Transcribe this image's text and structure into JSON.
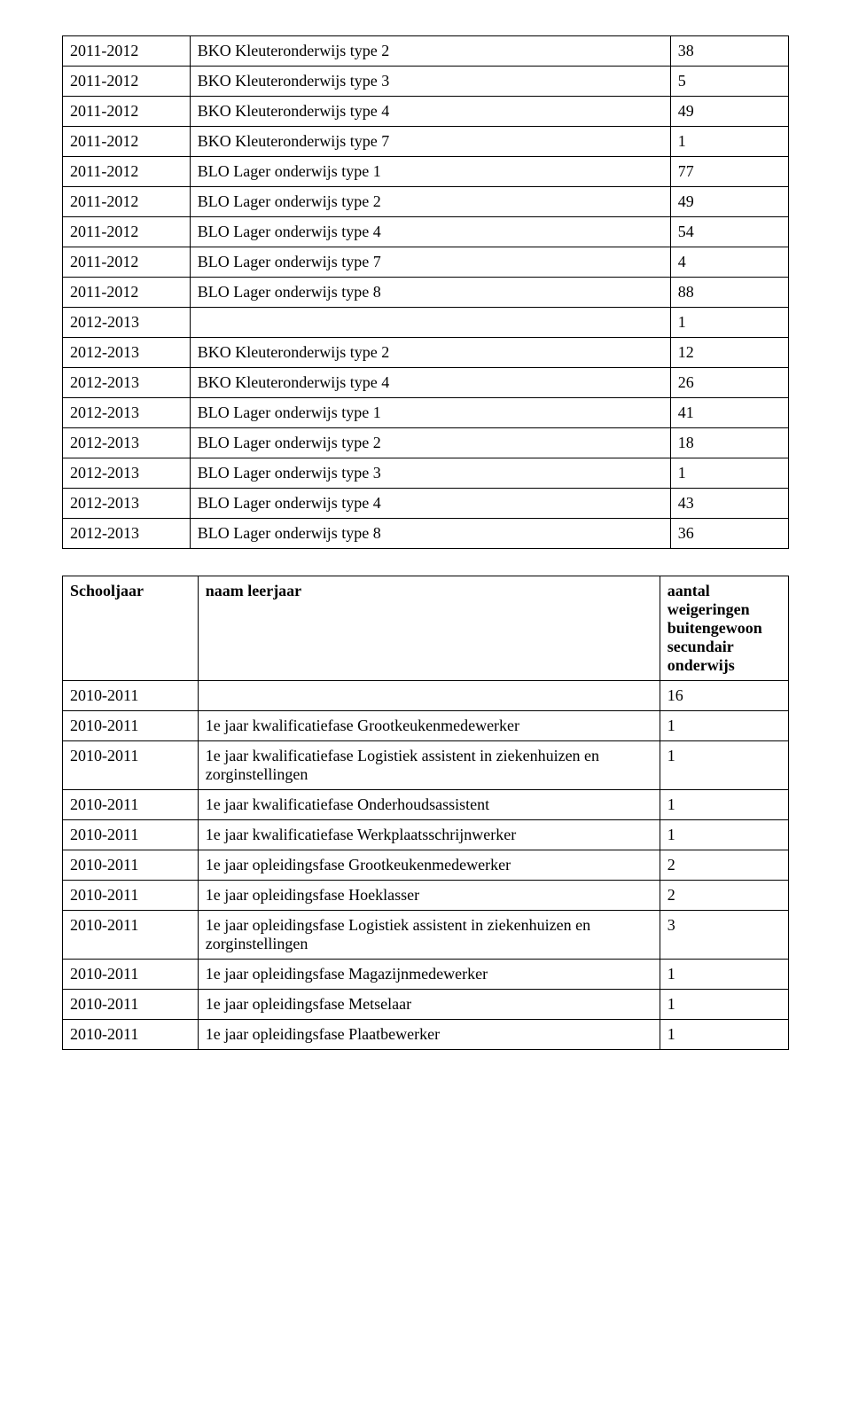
{
  "table1": {
    "rows": [
      [
        "2011-2012",
        "BKO Kleuteronderwijs type 2",
        "38"
      ],
      [
        "2011-2012",
        "BKO Kleuteronderwijs type 3",
        "5"
      ],
      [
        "2011-2012",
        "BKO Kleuteronderwijs type 4",
        "49"
      ],
      [
        "2011-2012",
        "BKO Kleuteronderwijs type 7",
        "1"
      ],
      [
        "2011-2012",
        "BLO Lager onderwijs type 1",
        "77"
      ],
      [
        "2011-2012",
        "BLO Lager onderwijs type 2",
        "49"
      ],
      [
        "2011-2012",
        "BLO Lager onderwijs type 4",
        "54"
      ],
      [
        "2011-2012",
        "BLO Lager onderwijs type 7",
        "4"
      ],
      [
        "2011-2012",
        "BLO Lager onderwijs type 8",
        "88"
      ],
      [
        "2012-2013",
        "",
        "1"
      ],
      [
        "2012-2013",
        "BKO Kleuteronderwijs type 2",
        "12"
      ],
      [
        "2012-2013",
        "BKO Kleuteronderwijs type 4",
        "26"
      ],
      [
        "2012-2013",
        "BLO Lager onderwijs type 1",
        "41"
      ],
      [
        "2012-2013",
        "BLO Lager onderwijs type 2",
        "18"
      ],
      [
        "2012-2013",
        "BLO Lager onderwijs type 3",
        "1"
      ],
      [
        "2012-2013",
        "BLO Lager onderwijs type 4",
        "43"
      ],
      [
        "2012-2013",
        "BLO Lager onderwijs type 8",
        "36"
      ]
    ]
  },
  "table2": {
    "header": [
      "Schooljaar",
      "naam leerjaar",
      "aantal weigeringen buitengewoon secundair onderwijs"
    ],
    "rows": [
      [
        "2010-2011",
        "",
        "16"
      ],
      [
        "2010-2011",
        "1e jaar kwalificatiefase Grootkeukenmedewerker",
        "1"
      ],
      [
        "2010-2011",
        "1e jaar kwalificatiefase Logistiek assistent in ziekenhuizen en zorginstellingen",
        "1"
      ],
      [
        "2010-2011",
        "1e jaar kwalificatiefase Onderhoudsassistent",
        "1"
      ],
      [
        "2010-2011",
        "1e jaar kwalificatiefase Werkplaatsschrijnwerker",
        "1"
      ],
      [
        "2010-2011",
        "1e jaar opleidingsfase Grootkeukenmedewerker",
        "2"
      ],
      [
        "2010-2011",
        "1e jaar opleidingsfase Hoeklasser",
        "2"
      ],
      [
        "2010-2011",
        "1e jaar opleidingsfase Logistiek assistent in ziekenhuizen en zorginstellingen",
        "3"
      ],
      [
        "2010-2011",
        "1e jaar opleidingsfase Magazijnmedewerker",
        "1"
      ],
      [
        "2010-2011",
        "1e jaar opleidingsfase Metselaar",
        "1"
      ],
      [
        "2010-2011",
        "1e jaar opleidingsfase Plaatbewerker",
        "1"
      ]
    ]
  }
}
